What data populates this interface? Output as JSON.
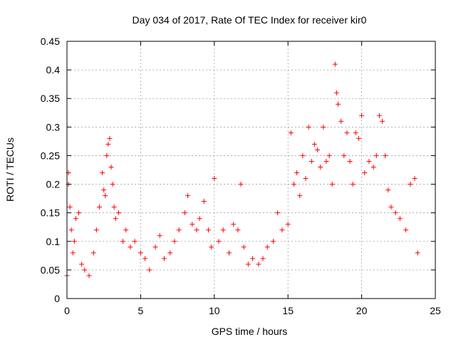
{
  "chart_data": {
    "type": "scatter",
    "title": "Day 034 of 2017, Rate Of TEC Index for receiver kir0",
    "xlabel": "GPS time / hours",
    "ylabel": "ROTI / TECUs",
    "xlim": [
      0,
      25
    ],
    "ylim": [
      0,
      0.45
    ],
    "x_ticks": [
      0,
      5,
      10,
      15,
      20,
      25
    ],
    "y_ticks": [
      0,
      0.05,
      0.1,
      0.15,
      0.2,
      0.25,
      0.3,
      0.35,
      0.4,
      0.45
    ],
    "x_tick_labels": [
      "0",
      "5",
      "10",
      "15",
      "20",
      "25"
    ],
    "y_tick_labels": [
      "0",
      "0.05",
      "0.1",
      "0.15",
      "0.2",
      "0.25",
      "0.3",
      "0.35",
      "0.4",
      "0.45"
    ],
    "grid": true,
    "marker": "+",
    "marker_color": "#ff0000",
    "series": [
      {
        "x": [
          0.0,
          0.1,
          0.1,
          0.2,
          0.3,
          0.4,
          0.5,
          0.6,
          0.8,
          1.0,
          1.2,
          1.5,
          1.8,
          2.0,
          2.2,
          2.4,
          2.5,
          2.6,
          2.7,
          2.8,
          2.9,
          3.0,
          3.1,
          3.2,
          3.3,
          3.5,
          3.8,
          4.0,
          4.3,
          4.6,
          5.0,
          5.3,
          5.6,
          6.0,
          6.3,
          6.6,
          7.0,
          7.3,
          7.6,
          8.0,
          8.2,
          8.5,
          8.8,
          9.0,
          9.3,
          9.6,
          9.8,
          10.0,
          10.3,
          10.6,
          11.0,
          11.3,
          11.6,
          11.8,
          12.0,
          12.3,
          12.6,
          13.0,
          13.3,
          13.6,
          14.0,
          14.3,
          14.6,
          15.0,
          15.2,
          15.4,
          15.6,
          15.8,
          16.0,
          16.2,
          16.4,
          16.6,
          16.8,
          17.0,
          17.2,
          17.4,
          17.6,
          17.8,
          18.0,
          18.2,
          18.3,
          18.4,
          18.6,
          18.8,
          19.0,
          19.2,
          19.4,
          19.6,
          19.8,
          20.0,
          20.2,
          20.5,
          20.8,
          21.0,
          21.2,
          21.4,
          21.6,
          21.8,
          22.0,
          22.3,
          22.6,
          23.0,
          23.3,
          23.6,
          23.8
        ],
        "y": [
          0.04,
          0.2,
          0.22,
          0.16,
          0.12,
          0.08,
          0.1,
          0.14,
          0.15,
          0.06,
          0.05,
          0.04,
          0.08,
          0.12,
          0.16,
          0.22,
          0.19,
          0.18,
          0.25,
          0.27,
          0.28,
          0.23,
          0.2,
          0.16,
          0.14,
          0.15,
          0.1,
          0.12,
          0.09,
          0.1,
          0.08,
          0.07,
          0.05,
          0.09,
          0.11,
          0.07,
          0.08,
          0.1,
          0.12,
          0.15,
          0.18,
          0.13,
          0.12,
          0.14,
          0.17,
          0.12,
          0.09,
          0.21,
          0.1,
          0.12,
          0.08,
          0.13,
          0.12,
          0.2,
          0.09,
          0.06,
          0.07,
          0.06,
          0.07,
          0.09,
          0.1,
          0.15,
          0.12,
          0.13,
          0.29,
          0.2,
          0.22,
          0.18,
          0.25,
          0.21,
          0.3,
          0.24,
          0.27,
          0.26,
          0.23,
          0.3,
          0.24,
          0.25,
          0.2,
          0.41,
          0.36,
          0.34,
          0.31,
          0.25,
          0.29,
          0.24,
          0.2,
          0.29,
          0.28,
          0.32,
          0.22,
          0.24,
          0.23,
          0.25,
          0.32,
          0.31,
          0.25,
          0.19,
          0.16,
          0.15,
          0.14,
          0.12,
          0.2,
          0.21,
          0.08
        ]
      }
    ]
  }
}
